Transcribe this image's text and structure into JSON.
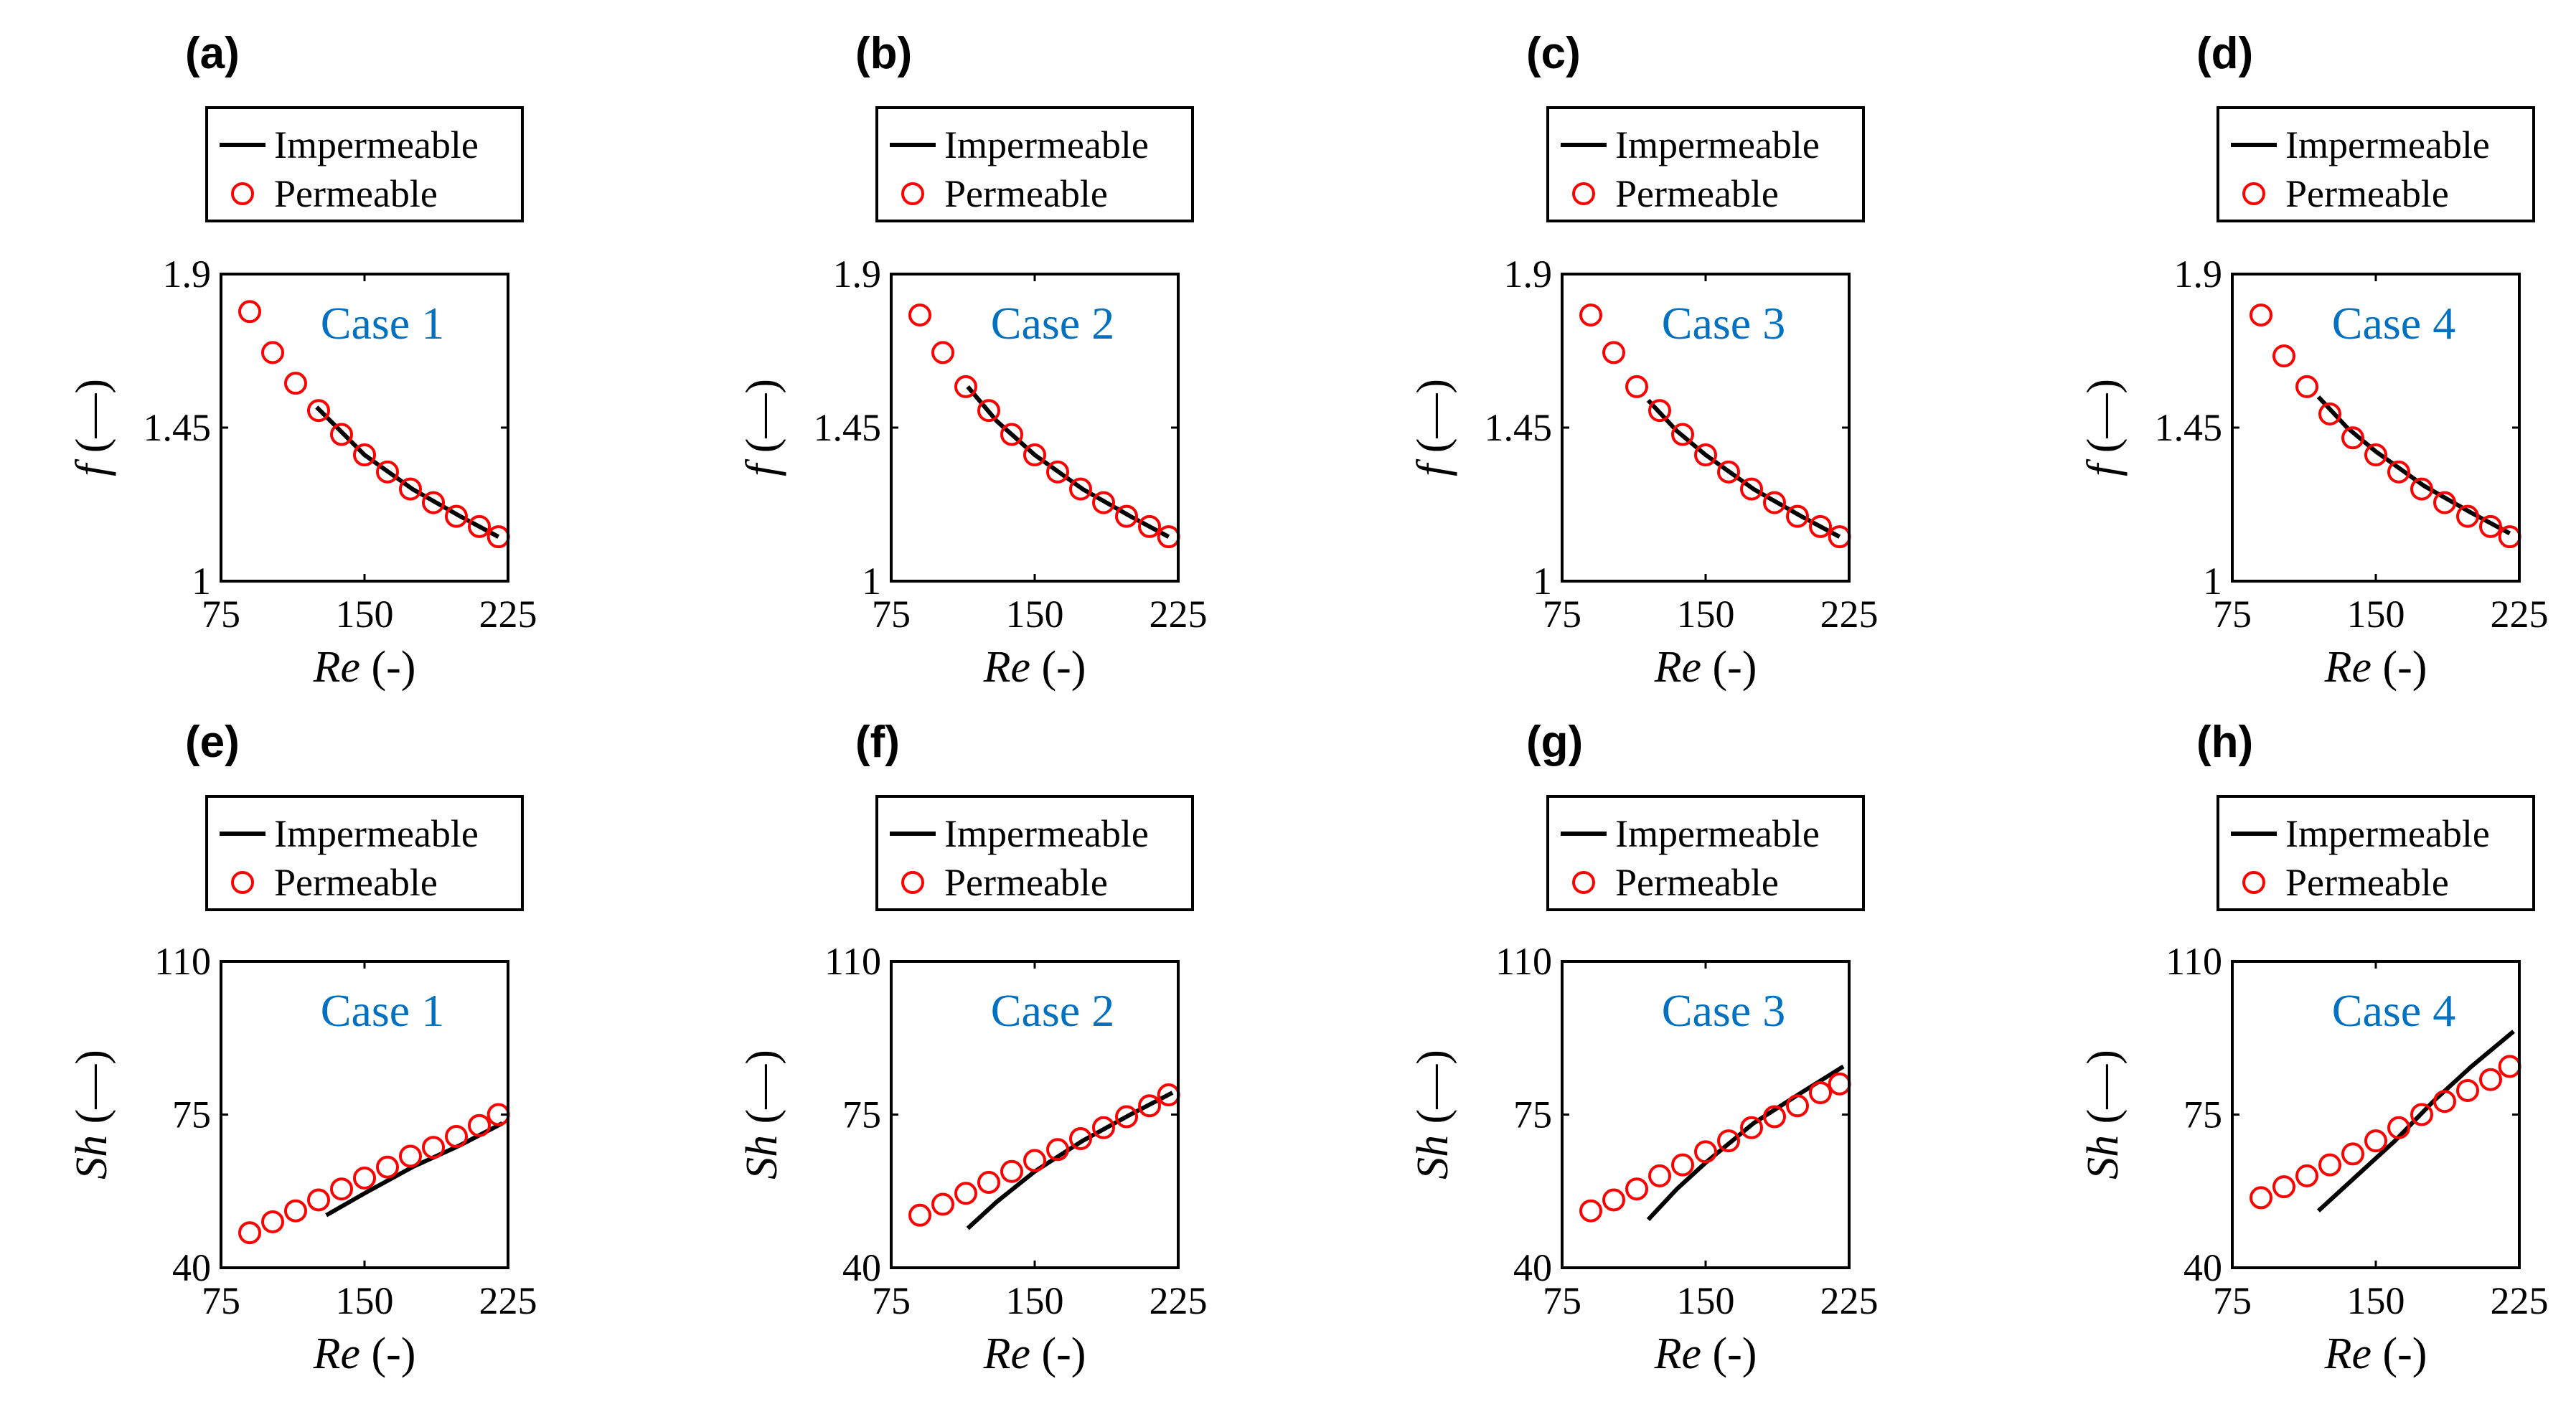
{
  "colors": {
    "impermeable": "#000000",
    "permeable": "#ff0000",
    "case_label": "#0070c0"
  },
  "legend": {
    "impermeable": "Impermeable",
    "permeable": "Permeable"
  },
  "chart_data": [
    {
      "panel": "(a)",
      "type": "line+scatter",
      "case": "Case 1",
      "xlabel": "Re",
      "xunit": "(-)",
      "ylabel": "f",
      "yunit": "(—)",
      "xlim": [
        75,
        225
      ],
      "ylim": [
        1,
        1.9
      ],
      "xticks": [
        "75",
        "150",
        "225"
      ],
      "yticks": [
        "1",
        "1.45",
        "1.9"
      ],
      "series": [
        {
          "name": "Impermeable",
          "style": "line",
          "x": [
            125,
            150,
            175,
            200,
            220
          ],
          "y": [
            1.51,
            1.37,
            1.27,
            1.19,
            1.13
          ]
        },
        {
          "name": "Permeable",
          "style": "marker",
          "x": [
            90,
            102,
            114,
            126,
            138,
            150,
            162,
            174,
            186,
            198,
            210,
            220
          ],
          "y": [
            1.79,
            1.67,
            1.58,
            1.5,
            1.43,
            1.37,
            1.32,
            1.27,
            1.23,
            1.19,
            1.16,
            1.13
          ]
        }
      ]
    },
    {
      "panel": "(b)",
      "type": "line+scatter",
      "case": "Case 2",
      "xlabel": "Re",
      "xunit": "(-)",
      "ylabel": "f",
      "yunit": "(—)",
      "xlim": [
        75,
        225
      ],
      "ylim": [
        1,
        1.9
      ],
      "xticks": [
        "75",
        "150",
        "225"
      ],
      "yticks": [
        "1",
        "1.45",
        "1.9"
      ],
      "series": [
        {
          "name": "Impermeable",
          "style": "line",
          "x": [
            115,
            130,
            150,
            175,
            200,
            220
          ],
          "y": [
            1.57,
            1.47,
            1.37,
            1.27,
            1.19,
            1.13
          ]
        },
        {
          "name": "Permeable",
          "style": "marker",
          "x": [
            90,
            102,
            114,
            126,
            138,
            150,
            162,
            174,
            186,
            198,
            210,
            220
          ],
          "y": [
            1.78,
            1.67,
            1.57,
            1.5,
            1.43,
            1.37,
            1.32,
            1.27,
            1.23,
            1.19,
            1.16,
            1.13
          ]
        }
      ]
    },
    {
      "panel": "(c)",
      "type": "line+scatter",
      "case": "Case 3",
      "xlabel": "Re",
      "xunit": "(-)",
      "ylabel": "f",
      "yunit": "(—)",
      "xlim": [
        75,
        225
      ],
      "ylim": [
        1,
        1.9
      ],
      "xticks": [
        "75",
        "150",
        "225"
      ],
      "yticks": [
        "1",
        "1.45",
        "1.9"
      ],
      "series": [
        {
          "name": "Impermeable",
          "style": "line",
          "x": [
            120,
            135,
            150,
            175,
            200,
            220
          ],
          "y": [
            1.53,
            1.44,
            1.37,
            1.27,
            1.19,
            1.13
          ]
        },
        {
          "name": "Permeable",
          "style": "marker",
          "x": [
            90,
            102,
            114,
            126,
            138,
            150,
            162,
            174,
            186,
            198,
            210,
            220
          ],
          "y": [
            1.78,
            1.67,
            1.57,
            1.5,
            1.43,
            1.37,
            1.32,
            1.27,
            1.23,
            1.19,
            1.16,
            1.13
          ]
        }
      ]
    },
    {
      "panel": "(d)",
      "type": "line+scatter",
      "case": "Case 4",
      "xlabel": "Re",
      "xunit": "(-)",
      "ylabel": "f",
      "yunit": "(—)",
      "xlim": [
        75,
        225
      ],
      "ylim": [
        1,
        1.9
      ],
      "xticks": [
        "75",
        "150",
        "225"
      ],
      "yticks": [
        "1",
        "1.45",
        "1.9"
      ],
      "series": [
        {
          "name": "Impermeable",
          "style": "line",
          "x": [
            120,
            135,
            150,
            175,
            200,
            220
          ],
          "y": [
            1.54,
            1.45,
            1.38,
            1.28,
            1.2,
            1.14
          ]
        },
        {
          "name": "Permeable",
          "style": "marker",
          "x": [
            90,
            102,
            114,
            126,
            138,
            150,
            162,
            174,
            186,
            198,
            210,
            220
          ],
          "y": [
            1.78,
            1.66,
            1.57,
            1.49,
            1.42,
            1.37,
            1.32,
            1.27,
            1.23,
            1.19,
            1.16,
            1.13
          ]
        }
      ]
    },
    {
      "panel": "(e)",
      "type": "line+scatter",
      "case": "Case 1",
      "xlabel": "Re",
      "xunit": "(-)",
      "ylabel": "Sh",
      "yunit": "(—)",
      "xlim": [
        75,
        225
      ],
      "ylim": [
        40,
        110
      ],
      "xticks": [
        "75",
        "150",
        "225"
      ],
      "yticks": [
        "40",
        "75",
        "110"
      ],
      "series": [
        {
          "name": "Impermeable",
          "style": "line",
          "x": [
            130,
            150,
            175,
            200,
            222
          ],
          "y": [
            52,
            57,
            63,
            68,
            73
          ]
        },
        {
          "name": "Permeable",
          "style": "marker",
          "x": [
            90,
            102,
            114,
            126,
            138,
            150,
            162,
            174,
            186,
            198,
            210,
            220
          ],
          "y": [
            48,
            50.5,
            53,
            55.5,
            58,
            60.5,
            63,
            65.5,
            67.5,
            70,
            72.5,
            75
          ]
        }
      ]
    },
    {
      "panel": "(f)",
      "type": "line+scatter",
      "case": "Case 2",
      "xlabel": "Re",
      "xunit": "(-)",
      "ylabel": "Sh",
      "yunit": "(—)",
      "xlim": [
        75,
        225
      ],
      "ylim": [
        40,
        110
      ],
      "xticks": [
        "75",
        "150",
        "225"
      ],
      "yticks": [
        "40",
        "75",
        "110"
      ],
      "series": [
        {
          "name": "Impermeable",
          "style": "line",
          "x": [
            115,
            130,
            150,
            175,
            200,
            222
          ],
          "y": [
            49,
            55,
            62,
            69,
            75,
            80
          ]
        },
        {
          "name": "Permeable",
          "style": "marker",
          "x": [
            90,
            102,
            114,
            126,
            138,
            150,
            162,
            174,
            186,
            198,
            210,
            220
          ],
          "y": [
            52,
            54.5,
            57,
            59.5,
            62,
            64.5,
            67,
            69.5,
            72,
            74.5,
            77,
            79.5
          ]
        }
      ]
    },
    {
      "panel": "(g)",
      "type": "line+scatter",
      "case": "Case 3",
      "xlabel": "Re",
      "xunit": "(-)",
      "ylabel": "Sh",
      "yunit": "(—)",
      "xlim": [
        75,
        225
      ],
      "ylim": [
        40,
        110
      ],
      "xticks": [
        "75",
        "150",
        "225"
      ],
      "yticks": [
        "40",
        "75",
        "110"
      ],
      "series": [
        {
          "name": "Impermeable",
          "style": "line",
          "x": [
            120,
            135,
            150,
            175,
            200,
            222
          ],
          "y": [
            51,
            58,
            64,
            73,
            80,
            86
          ]
        },
        {
          "name": "Permeable",
          "style": "marker",
          "x": [
            90,
            102,
            114,
            126,
            138,
            150,
            162,
            174,
            186,
            198,
            210,
            220
          ],
          "y": [
            53,
            55.5,
            58,
            61,
            63.5,
            66.5,
            69,
            72,
            74.5,
            77,
            80,
            82
          ]
        }
      ]
    },
    {
      "panel": "(h)",
      "type": "line+scatter",
      "case": "Case 4",
      "xlabel": "Re",
      "xunit": "(-)",
      "ylabel": "Sh",
      "yunit": "(—)",
      "xlim": [
        75,
        225
      ],
      "ylim": [
        40,
        110
      ],
      "xticks": [
        "75",
        "150",
        "225"
      ],
      "yticks": [
        "40",
        "75",
        "110"
      ],
      "series": [
        {
          "name": "Impermeable",
          "style": "line",
          "x": [
            120,
            140,
            160,
            180,
            200,
            222
          ],
          "y": [
            53,
            61,
            69,
            78,
            86,
            94
          ]
        },
        {
          "name": "Permeable",
          "style": "marker",
          "x": [
            90,
            102,
            114,
            126,
            138,
            150,
            162,
            174,
            186,
            198,
            210,
            220
          ],
          "y": [
            56,
            58.5,
            61,
            63.5,
            66,
            69,
            72,
            75,
            78,
            80.5,
            83,
            86
          ]
        }
      ]
    }
  ]
}
